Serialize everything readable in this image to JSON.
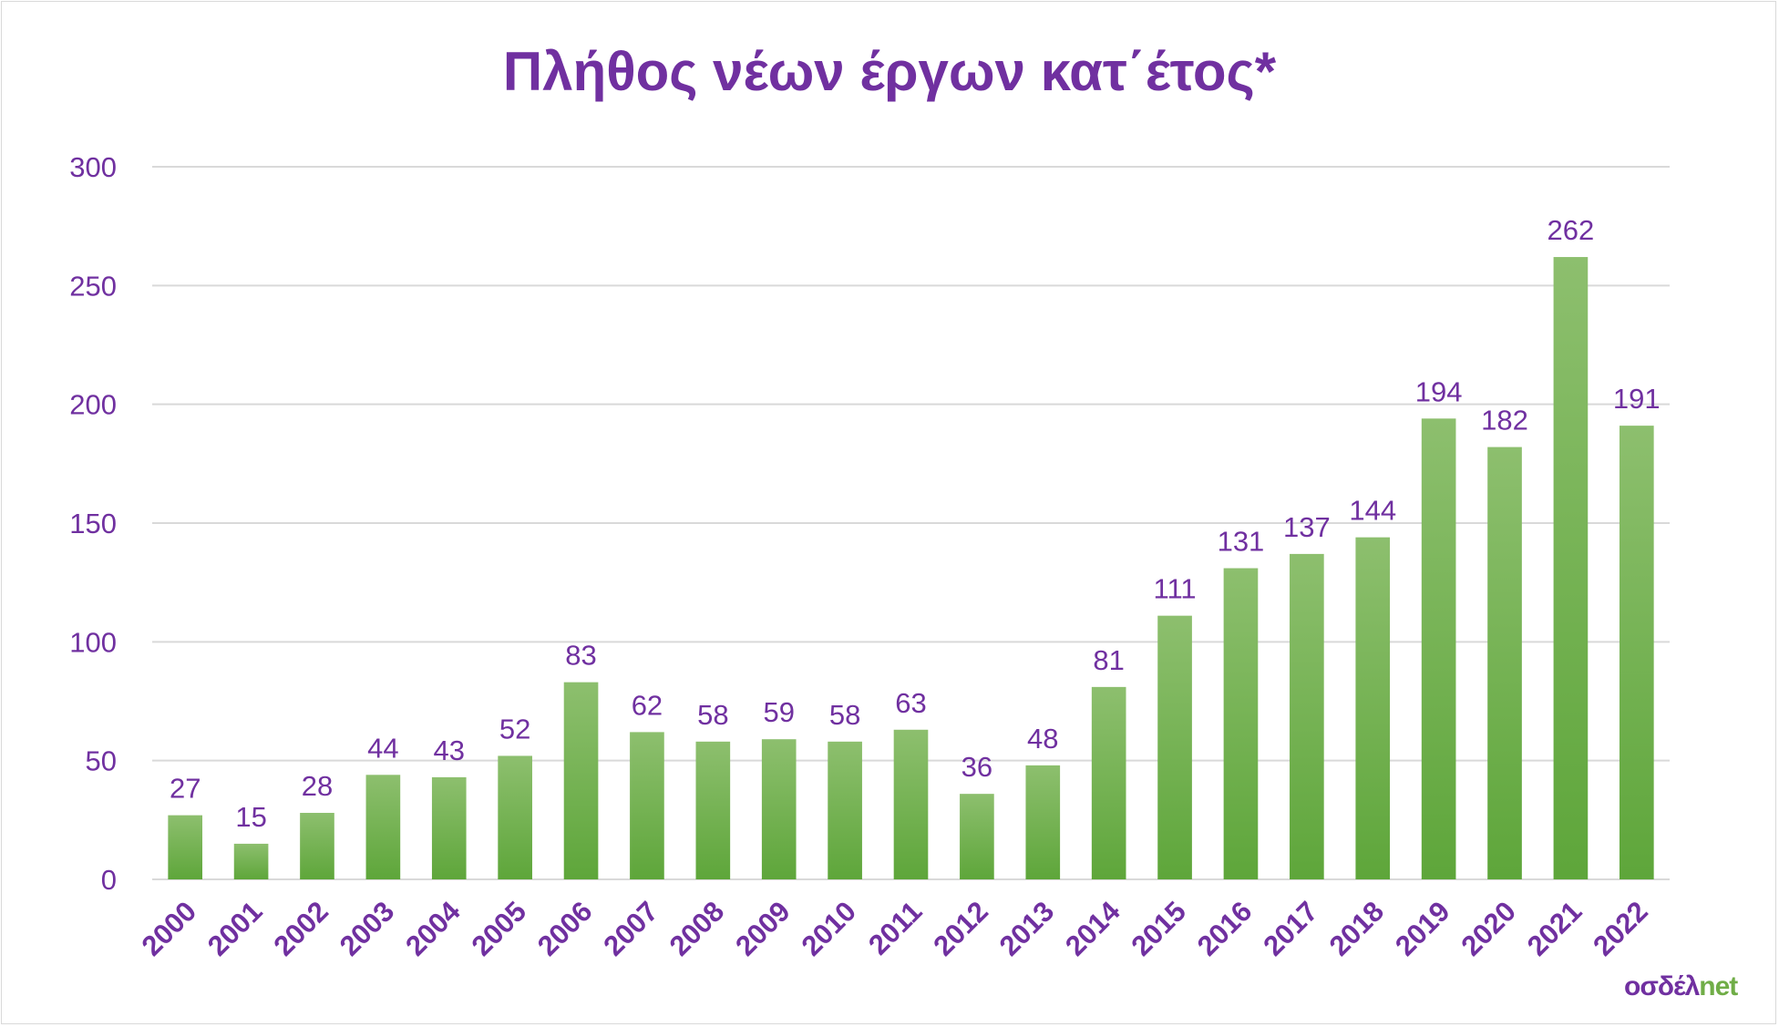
{
  "chart_data": {
    "type": "bar",
    "title": "Πλήθος νέων έργων κατ΄έτος*",
    "xlabel": "",
    "ylabel": "",
    "ylim": [
      0,
      300
    ],
    "yticks": [
      0,
      50,
      100,
      150,
      200,
      250,
      300
    ],
    "categories": [
      "2000",
      "2001",
      "2002",
      "2003",
      "2004",
      "2005",
      "2006",
      "2007",
      "2008",
      "2009",
      "2010",
      "2011",
      "2012",
      "2013",
      "2014",
      "2015",
      "2016",
      "2017",
      "2018",
      "2019",
      "2020",
      "2021",
      "2022"
    ],
    "values": [
      27,
      15,
      28,
      44,
      43,
      52,
      83,
      62,
      58,
      59,
      58,
      63,
      36,
      48,
      81,
      111,
      131,
      137,
      144,
      194,
      182,
      262,
      191
    ],
    "grid": true,
    "legend": "none",
    "colors": {
      "bar_top": "#8dbf6e",
      "bar_bottom": "#5ea63a",
      "text": "#7030a0",
      "grid": "#d9d9d9"
    }
  },
  "logo": {
    "part1": "οσδέλ",
    "part2": "net"
  }
}
